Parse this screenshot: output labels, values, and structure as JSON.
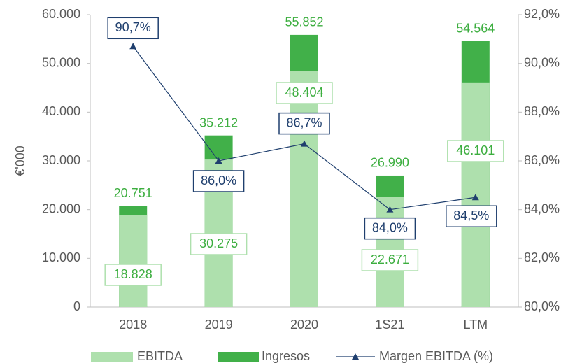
{
  "chart_data": {
    "type": "bar",
    "categories": [
      "2018",
      "2019",
      "2020",
      "1S21",
      "LTM"
    ],
    "y_label": "€'000",
    "series": [
      {
        "name": "EBITDA",
        "color": "#aee0ad",
        "values": [
          18828,
          30275,
          48404,
          22671,
          46101
        ],
        "value_labels": [
          "18.828",
          "30.275",
          "48.404",
          "22.671",
          "46.101"
        ]
      },
      {
        "name": "Ingresos",
        "color": "#41b049",
        "values": [
          20751,
          35212,
          55852,
          26990,
          54564
        ],
        "value_labels": [
          "20.751",
          "35.212",
          "55.852",
          "26.990",
          "54.564"
        ]
      },
      {
        "name": "Margen EBITDA (%)",
        "type": "line",
        "axis": "y2",
        "color": "#1f3f6e",
        "values": [
          90.7,
          86.0,
          86.7,
          84.0,
          84.5
        ],
        "value_labels": [
          "90,7%",
          "86,0%",
          "86,7%",
          "84,0%",
          "84,5%"
        ]
      }
    ],
    "ylim": [
      0,
      60000
    ],
    "yticks": [
      0,
      {
        "value": 10000,
        "label": "10.000"
      },
      {
        "value": 20000,
        "label": "20.000"
      },
      {
        "value": 30000,
        "label": "30.000"
      },
      {
        "value": 40000,
        "label": "40.000"
      },
      {
        "value": 50000,
        "label": "50.000"
      },
      {
        "value": 60000,
        "label": "60.000"
      }
    ],
    "y2lim": [
      80,
      92
    ],
    "y2ticks": [
      {
        "value": 80,
        "label": "80,0%"
      },
      {
        "value": 82,
        "label": "82,0%"
      },
      {
        "value": 84,
        "label": "84,0%"
      },
      {
        "value": 86,
        "label": "86,0%"
      },
      {
        "value": 88,
        "label": "88,0%"
      },
      {
        "value": 90,
        "label": "90,0%"
      },
      {
        "value": 92,
        "label": "92,0%"
      }
    ],
    "legend": "bottom"
  }
}
